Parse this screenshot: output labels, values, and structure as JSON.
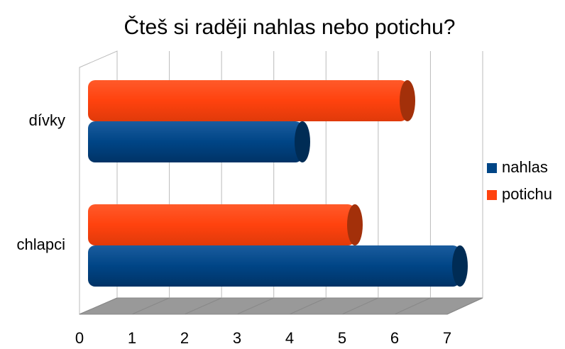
{
  "chart_data": {
    "type": "bar",
    "orientation": "horizontal",
    "title": "Čteš si raději nahlas nebo potichu?",
    "categories": [
      "dívky",
      "chlapci"
    ],
    "series": [
      {
        "name": "nahlas",
        "color": "#004586",
        "values": [
          4,
          7
        ]
      },
      {
        "name": "potichu",
        "color": "#ff420e",
        "values": [
          6,
          5
        ]
      }
    ],
    "xlim": [
      0,
      7
    ],
    "xticks": [
      0,
      1,
      2,
      3,
      4,
      5,
      6,
      7
    ],
    "grid": true,
    "legend": "right"
  }
}
